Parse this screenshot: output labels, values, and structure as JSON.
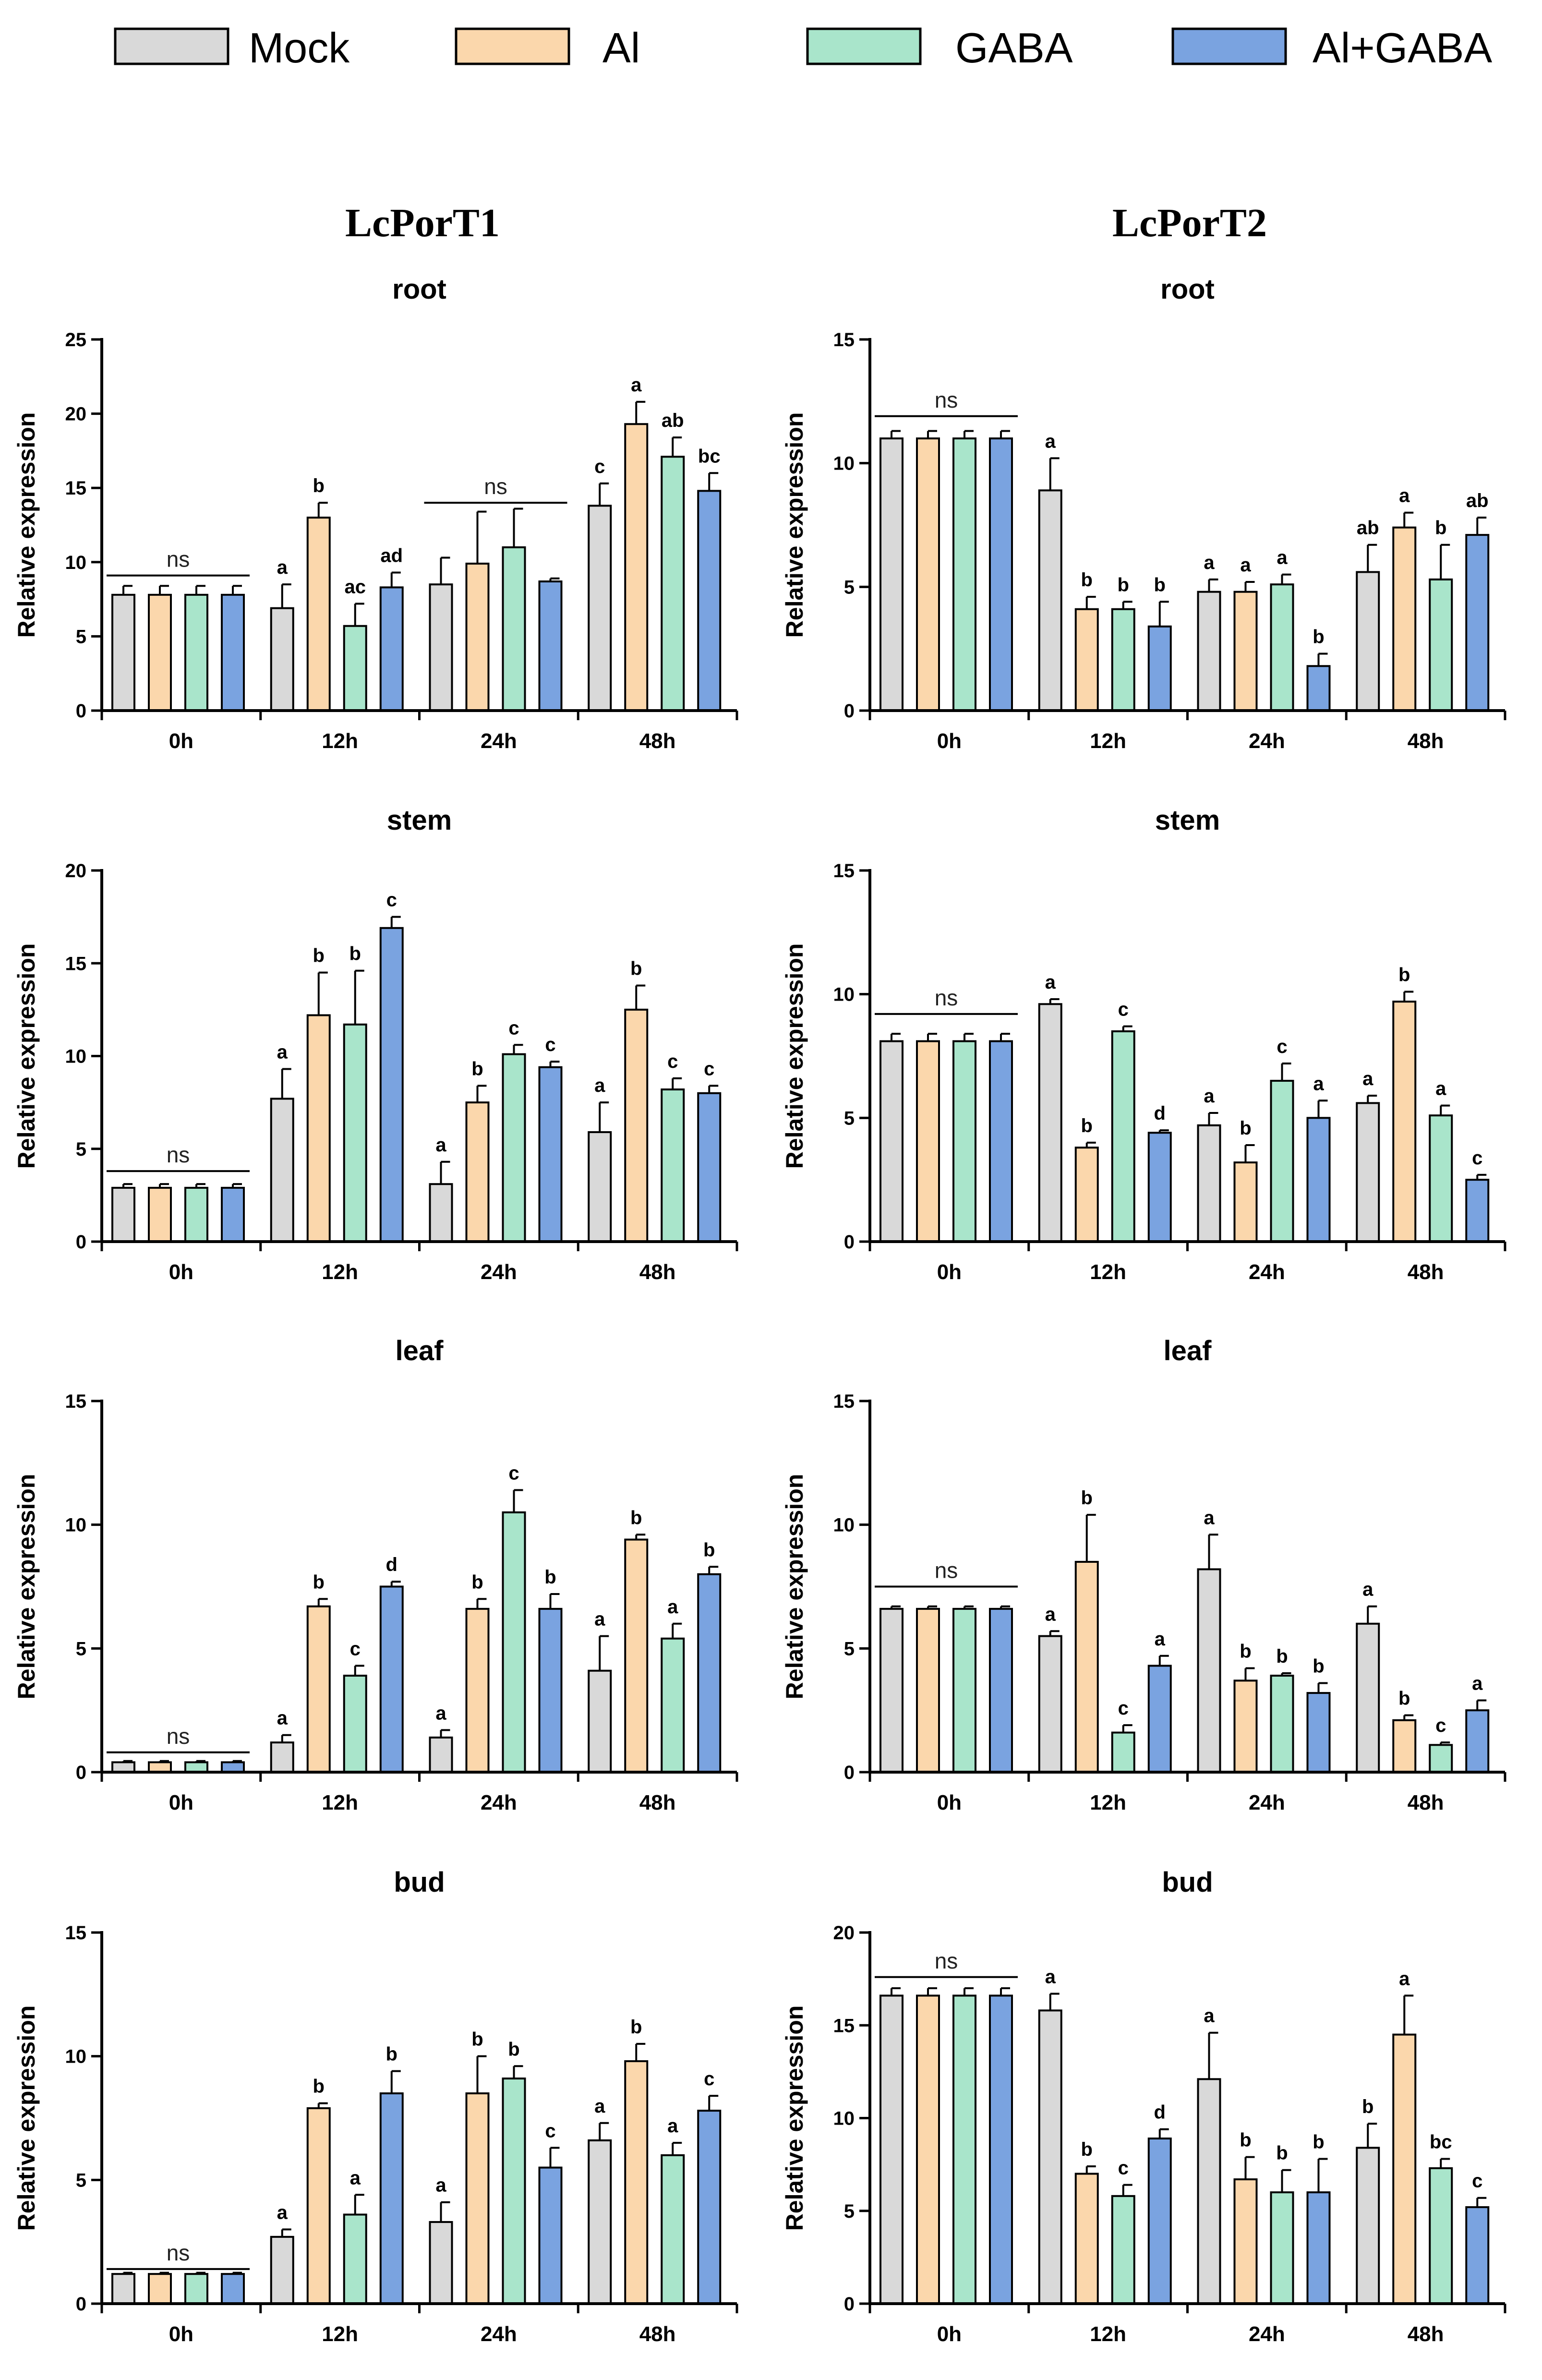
{
  "legend": [
    {
      "name": "Mock",
      "color": "#d9d9d9"
    },
    {
      "name": "Al",
      "color": "#fbd7ac"
    },
    {
      "name": "GABA",
      "color": "#a9e5cb"
    },
    {
      "name": "Al+GABA",
      "color": "#7aa3e0"
    }
  ],
  "col_titles": [
    "LcPorT1",
    "LcPorT2"
  ],
  "chart_data": [
    {
      "type": "bar",
      "gene": "LcPorT1",
      "title": "root",
      "categories": [
        "0h",
        "12h",
        "24h",
        "48h"
      ],
      "ylabel": "Relative expression",
      "ylim": [
        0,
        25
      ],
      "yticks": [
        0,
        5,
        10,
        15,
        20,
        25
      ],
      "series": [
        {
          "name": "Mock",
          "values": [
            7.8,
            6.9,
            8.5,
            13.8
          ],
          "errors": [
            0.6,
            1.6,
            1.8,
            1.5
          ]
        },
        {
          "name": "Al",
          "values": [
            7.8,
            13.0,
            9.9,
            19.3
          ],
          "errors": [
            0.6,
            1.0,
            3.5,
            1.5
          ]
        },
        {
          "name": "GABA",
          "values": [
            7.8,
            5.7,
            11.0,
            17.1
          ],
          "errors": [
            0.6,
            1.5,
            2.6,
            1.3
          ]
        },
        {
          "name": "Al+GABA",
          "values": [
            7.8,
            8.3,
            8.7,
            14.8
          ],
          "errors": [
            0.6,
            1.0,
            0.2,
            1.2
          ]
        }
      ],
      "labels": [
        [
          "",
          "",
          "",
          ""
        ],
        [
          "a",
          "b",
          "ac",
          "ad"
        ],
        [
          "",
          "",
          "",
          ""
        ],
        [
          "c",
          "a",
          "ab",
          "bc"
        ]
      ],
      "ns": [
        {
          "from": 0,
          "to": 0,
          "y": 9.1,
          "text": "ns"
        },
        {
          "from": 2,
          "to": 2,
          "y": 14.0,
          "text": "ns"
        }
      ]
    },
    {
      "type": "bar",
      "gene": "LcPorT2",
      "title": "root",
      "categories": [
        "0h",
        "12h",
        "24h",
        "48h"
      ],
      "ylabel": "Relative expression",
      "ylim": [
        0,
        15
      ],
      "yticks": [
        0,
        5,
        10,
        15
      ],
      "series": [
        {
          "name": "Mock",
          "values": [
            11.0,
            8.9,
            4.8,
            5.6
          ],
          "errors": [
            0.3,
            1.3,
            0.5,
            1.1
          ]
        },
        {
          "name": "Al",
          "values": [
            11.0,
            4.1,
            4.8,
            7.4
          ],
          "errors": [
            0.3,
            0.5,
            0.4,
            0.6
          ]
        },
        {
          "name": "GABA",
          "values": [
            11.0,
            4.1,
            5.1,
            5.3
          ],
          "errors": [
            0.3,
            0.3,
            0.4,
            1.4
          ]
        },
        {
          "name": "Al+GABA",
          "values": [
            11.0,
            3.4,
            1.8,
            7.1
          ],
          "errors": [
            0.3,
            1.0,
            0.5,
            0.7
          ]
        }
      ],
      "labels": [
        [
          "",
          "",
          "",
          ""
        ],
        [
          "a",
          "b",
          "b",
          "b"
        ],
        [
          "a",
          "a",
          "a",
          "b"
        ],
        [
          "ab",
          "a",
          "b",
          "ab"
        ]
      ],
      "ns": [
        {
          "from": 0,
          "to": 0,
          "y": 11.9,
          "text": "ns"
        }
      ]
    },
    {
      "type": "bar",
      "gene": "LcPorT1",
      "title": "stem",
      "categories": [
        "0h",
        "12h",
        "24h",
        "48h"
      ],
      "ylabel": "Relative expression",
      "ylim": [
        0,
        20
      ],
      "yticks": [
        0,
        5,
        10,
        15,
        20
      ],
      "series": [
        {
          "name": "Mock",
          "values": [
            2.9,
            7.7,
            3.1,
            5.9
          ],
          "errors": [
            0.2,
            1.6,
            1.2,
            1.6
          ]
        },
        {
          "name": "Al",
          "values": [
            2.9,
            12.2,
            7.5,
            12.5
          ],
          "errors": [
            0.2,
            2.3,
            0.9,
            1.3
          ]
        },
        {
          "name": "GABA",
          "values": [
            2.9,
            11.7,
            10.1,
            8.2
          ],
          "errors": [
            0.2,
            2.9,
            0.5,
            0.6
          ]
        },
        {
          "name": "Al+GABA",
          "values": [
            2.9,
            16.9,
            9.4,
            8.0
          ],
          "errors": [
            0.2,
            0.6,
            0.3,
            0.4
          ]
        }
      ],
      "labels": [
        [
          "",
          "",
          "",
          ""
        ],
        [
          "a",
          "b",
          "b",
          "c"
        ],
        [
          "a",
          "b",
          "c",
          "c"
        ],
        [
          "a",
          "b",
          "c",
          "c"
        ]
      ],
      "ns": [
        {
          "from": 0,
          "to": 0,
          "y": 3.8,
          "text": "ns"
        }
      ]
    },
    {
      "type": "bar",
      "gene": "LcPorT2",
      "title": "stem",
      "categories": [
        "0h",
        "12h",
        "24h",
        "48h"
      ],
      "ylabel": "Relative expression",
      "ylim": [
        0,
        15
      ],
      "yticks": [
        0,
        5,
        10,
        15
      ],
      "series": [
        {
          "name": "Mock",
          "values": [
            8.1,
            9.6,
            4.7,
            5.6
          ],
          "errors": [
            0.3,
            0.2,
            0.5,
            0.3
          ]
        },
        {
          "name": "Al",
          "values": [
            8.1,
            3.8,
            3.2,
            9.7
          ],
          "errors": [
            0.3,
            0.2,
            0.7,
            0.4
          ]
        },
        {
          "name": "GABA",
          "values": [
            8.1,
            8.5,
            6.5,
            5.1
          ],
          "errors": [
            0.3,
            0.2,
            0.7,
            0.4
          ]
        },
        {
          "name": "Al+GABA",
          "values": [
            8.1,
            4.4,
            5.0,
            2.5
          ],
          "errors": [
            0.3,
            0.1,
            0.7,
            0.2
          ]
        }
      ],
      "labels": [
        [
          "",
          "",
          "",
          ""
        ],
        [
          "a",
          "b",
          "c",
          "d"
        ],
        [
          "a",
          "b",
          "c",
          "a"
        ],
        [
          "a",
          "b",
          "a",
          "c"
        ]
      ],
      "ns": [
        {
          "from": 0,
          "to": 0,
          "y": 9.2,
          "text": "ns"
        }
      ]
    },
    {
      "type": "bar",
      "gene": "LcPorT1",
      "title": "leaf",
      "categories": [
        "0h",
        "12h",
        "24h",
        "48h"
      ],
      "ylabel": "Relative expression",
      "ylim": [
        0,
        15
      ],
      "yticks": [
        0,
        5,
        10,
        15
      ],
      "series": [
        {
          "name": "Mock",
          "values": [
            0.4,
            1.2,
            1.4,
            4.1
          ],
          "errors": [
            0.05,
            0.3,
            0.3,
            1.4
          ]
        },
        {
          "name": "Al",
          "values": [
            0.4,
            6.7,
            6.6,
            9.4
          ],
          "errors": [
            0.05,
            0.3,
            0.4,
            0.2
          ]
        },
        {
          "name": "GABA",
          "values": [
            0.4,
            3.9,
            10.5,
            5.4
          ],
          "errors": [
            0.05,
            0.4,
            0.9,
            0.6
          ]
        },
        {
          "name": "Al+GABA",
          "values": [
            0.4,
            7.5,
            6.6,
            8.0
          ],
          "errors": [
            0.05,
            0.2,
            0.6,
            0.3
          ]
        }
      ],
      "labels": [
        [
          "",
          "",
          "",
          ""
        ],
        [
          "a",
          "b",
          "c",
          "d"
        ],
        [
          "a",
          "b",
          "c",
          "b"
        ],
        [
          "a",
          "b",
          "a",
          "b"
        ]
      ],
      "ns": [
        {
          "from": 0,
          "to": 0,
          "y": 0.8,
          "text": "ns"
        }
      ]
    },
    {
      "type": "bar",
      "gene": "LcPorT2",
      "title": "leaf",
      "categories": [
        "0h",
        "12h",
        "24h",
        "48h"
      ],
      "ylabel": "Relative expression",
      "ylim": [
        0,
        15
      ],
      "yticks": [
        0,
        5,
        10,
        15
      ],
      "series": [
        {
          "name": "Mock",
          "values": [
            6.6,
            5.5,
            8.2,
            6.0
          ],
          "errors": [
            0.1,
            0.2,
            1.4,
            0.7
          ]
        },
        {
          "name": "Al",
          "values": [
            6.6,
            8.5,
            3.7,
            2.1
          ],
          "errors": [
            0.1,
            1.9,
            0.5,
            0.2
          ]
        },
        {
          "name": "GABA",
          "values": [
            6.6,
            1.6,
            3.9,
            1.1
          ],
          "errors": [
            0.1,
            0.3,
            0.1,
            0.1
          ]
        },
        {
          "name": "Al+GABA",
          "values": [
            6.6,
            4.3,
            3.2,
            2.5
          ],
          "errors": [
            0.1,
            0.4,
            0.4,
            0.4
          ]
        }
      ],
      "labels": [
        [
          "",
          "",
          "",
          ""
        ],
        [
          "a",
          "b",
          "c",
          "a"
        ],
        [
          "a",
          "b",
          "b",
          "b"
        ],
        [
          "a",
          "b",
          "c",
          "a"
        ]
      ],
      "ns": [
        {
          "from": 0,
          "to": 0,
          "y": 7.5,
          "text": "ns"
        }
      ]
    },
    {
      "type": "bar",
      "gene": "LcPorT1",
      "title": "bud",
      "categories": [
        "0h",
        "12h",
        "24h",
        "48h"
      ],
      "ylabel": "Relative expression",
      "ylim": [
        0,
        15
      ],
      "yticks": [
        0,
        5,
        10,
        15
      ],
      "series": [
        {
          "name": "Mock",
          "values": [
            1.2,
            2.7,
            3.3,
            6.6
          ],
          "errors": [
            0.05,
            0.3,
            0.8,
            0.7
          ]
        },
        {
          "name": "Al",
          "values": [
            1.2,
            7.9,
            8.5,
            9.8
          ],
          "errors": [
            0.05,
            0.2,
            1.5,
            0.7
          ]
        },
        {
          "name": "GABA",
          "values": [
            1.2,
            3.6,
            9.1,
            6.0
          ],
          "errors": [
            0.05,
            0.8,
            0.5,
            0.5
          ]
        },
        {
          "name": "Al+GABA",
          "values": [
            1.2,
            8.5,
            5.5,
            7.8
          ],
          "errors": [
            0.05,
            0.9,
            0.8,
            0.6
          ]
        }
      ],
      "labels": [
        [
          "",
          "",
          "",
          ""
        ],
        [
          "a",
          "b",
          "a",
          "b"
        ],
        [
          "a",
          "b",
          "b",
          "c"
        ],
        [
          "a",
          "b",
          "a",
          "c"
        ]
      ],
      "ns": [
        {
          "from": 0,
          "to": 0,
          "y": 1.4,
          "text": "ns"
        }
      ]
    },
    {
      "type": "bar",
      "gene": "LcPorT2",
      "title": "bud",
      "categories": [
        "0h",
        "12h",
        "24h",
        "48h"
      ],
      "ylabel": "Relative expression",
      "ylim": [
        0,
        20
      ],
      "yticks": [
        0,
        5,
        10,
        15,
        20
      ],
      "series": [
        {
          "name": "Mock",
          "values": [
            16.6,
            15.8,
            12.1,
            8.4
          ],
          "errors": [
            0.4,
            0.9,
            2.5,
            1.3
          ]
        },
        {
          "name": "Al",
          "values": [
            16.6,
            7.0,
            6.7,
            14.5
          ],
          "errors": [
            0.4,
            0.4,
            1.2,
            2.1
          ]
        },
        {
          "name": "GABA",
          "values": [
            16.6,
            5.8,
            6.0,
            7.3
          ],
          "errors": [
            0.4,
            0.6,
            1.2,
            0.5
          ]
        },
        {
          "name": "Al+GABA",
          "values": [
            16.6,
            8.9,
            6.0,
            5.2
          ],
          "errors": [
            0.4,
            0.5,
            1.8,
            0.5
          ]
        }
      ],
      "labels": [
        [
          "",
          "",
          "",
          ""
        ],
        [
          "a",
          "b",
          "c",
          "d"
        ],
        [
          "a",
          "b",
          "b",
          "b"
        ],
        [
          "b",
          "a",
          "bc",
          "c"
        ]
      ],
      "ns": [
        {
          "from": 0,
          "to": 0,
          "y": 17.6,
          "text": "ns"
        }
      ]
    }
  ]
}
